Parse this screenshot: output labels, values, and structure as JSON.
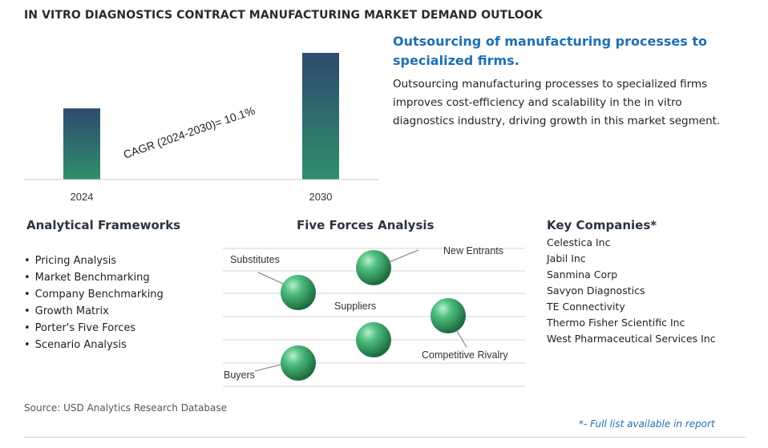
{
  "title": "IN VITRO DIAGNOSTICS CONTRACT MANUFACTURING MARKET DEMAND OUTLOOK",
  "chart_data": {
    "type": "bar",
    "categories": [
      "2024",
      "2030"
    ],
    "values": [
      1.0,
      1.78
    ],
    "annotation": "CAGR (2024-2030)=  10.1%",
    "cagr_percent": 10.1,
    "colors": [
      "#2f8f6d",
      "#2e4a6e"
    ]
  },
  "headline": "Outsourcing of manufacturing processes to specialized firms.",
  "description": "Outsourcing manufacturing processes to specialized firms improves cost-efficiency and scalability in the in vitro diagnostics industry, driving growth in this market segment.",
  "analytical_frameworks": {
    "title": "Analytical Frameworks",
    "items": [
      "Pricing Analysis",
      "Market Benchmarking",
      "Company Benchmarking",
      "Growth Matrix",
      "Porter's Five Forces",
      "Scenario Analysis"
    ]
  },
  "five_forces": {
    "title": "Five Forces Analysis",
    "labels": [
      "Substitutes",
      "New Entrants",
      "Suppliers",
      "Competitive Rivalry",
      "Buyers"
    ]
  },
  "key_companies": {
    "title": "Key Companies*",
    "items": [
      "Celestica Inc",
      "Jabil Inc",
      "Sanmina Corp",
      "Savyon Diagnostics",
      "TE Connectivity",
      "Thermo Fisher Scientific Inc",
      "West Pharmaceutical Services Inc"
    ]
  },
  "source": "Source: USD Analytics Research Database",
  "footnote": "*- Full list available in report"
}
